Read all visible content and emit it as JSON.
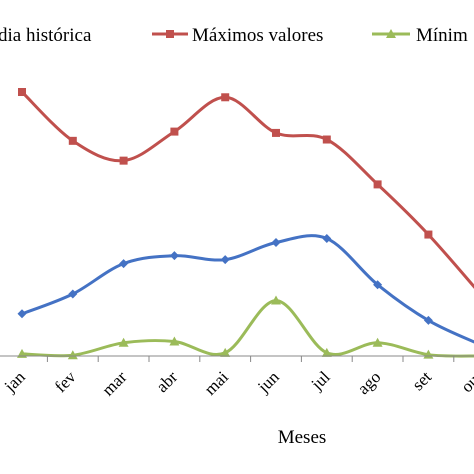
{
  "chart_data": {
    "type": "line",
    "xlabel": "Meses",
    "categories": [
      "jan",
      "fev",
      "mar",
      "abr",
      "mai",
      "jun",
      "jul",
      "ago",
      "set",
      "out"
    ],
    "legend_position": "top",
    "grid": false,
    "y_axis_visible": false,
    "ylim": [
      0,
      100
    ],
    "series": [
      {
        "name": "Média histórica",
        "legend_text": "dia histórica",
        "color": "#4472c4",
        "marker": "diamond",
        "values": [
          16,
          23.5,
          35,
          38,
          36.5,
          43,
          44.5,
          27,
          13.5,
          4.5
        ]
      },
      {
        "name": "Máximos valores",
        "legend_text": "Máximos valores",
        "color": "#c0504d",
        "marker": "square",
        "values": [
          100,
          81.5,
          74,
          85,
          98,
          84.5,
          82,
          65,
          46,
          24
        ]
      },
      {
        "name": "Mínimos valores",
        "legend_text": "Mínim",
        "color": "#9bbb59",
        "marker": "triangle",
        "values": [
          0.8,
          0.3,
          5,
          5.5,
          1.2,
          21,
          1.2,
          5,
          0.5,
          0
        ]
      }
    ]
  }
}
